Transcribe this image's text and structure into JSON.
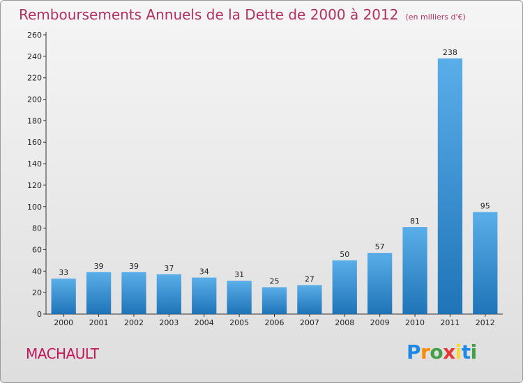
{
  "title": "Remboursements Annuels de la Dette de 2000 à 2012",
  "unit_note": "(en milliers d'€)",
  "commune": "MACHAULT",
  "logo": {
    "text": "Proxiti",
    "letter_colors": [
      "#1e88e5",
      "#fb8c00",
      "#43a047",
      "#e53935",
      "#fdd835",
      "#1e88e5",
      "#43a047"
    ]
  },
  "colors": {
    "bar_light": "#5aaee8",
    "bar_dark": "#1f74b8",
    "title": "#b03060",
    "commune": "#c2185b"
  },
  "chart_data": {
    "type": "bar",
    "title": "Remboursements Annuels de la Dette de 2000 à 2012",
    "subtitle": "(en milliers d'€)",
    "categories": [
      "2000",
      "2001",
      "2002",
      "2003",
      "2004",
      "2005",
      "2006",
      "2007",
      "2008",
      "2009",
      "2010",
      "2011",
      "2012"
    ],
    "values": [
      33,
      39,
      39,
      37,
      34,
      31,
      25,
      27,
      50,
      57,
      81,
      238,
      95
    ],
    "ylim": [
      0,
      260
    ],
    "yticks": [
      0,
      20,
      40,
      60,
      80,
      100,
      120,
      140,
      160,
      180,
      200,
      220,
      240,
      260
    ],
    "grid": false,
    "legend": "none"
  }
}
